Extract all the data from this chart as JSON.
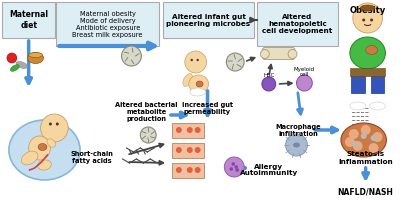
{
  "bg_color": "#ffffff",
  "box_color": "#ddeef5",
  "box_edge": "#aaaaaa",
  "arrow_blue": "#4a90d9",
  "arrow_dark": "#444444",
  "text_box1": "Maternal\ndiet",
  "text_box2": "Maternal obesity\nMode of delivery\nAntibiotic exposure\nBreast milk exposure",
  "text_box3": "Altered infant gut\npioneering microbes",
  "text_box4": "Altered\nhematopoietic\ncell development",
  "text_obesity": "Obesity",
  "text_altered_bact": "Altered bacterial\nmetabolite\nproduction",
  "text_increased_gut": "Increased gut\npermeability",
  "text_scfa": "Short-chain\nfatty acids",
  "text_macrophage": "Macrophage\ninfiltration",
  "text_allergy": "Allergy\nAutoimmunity",
  "text_steatosis": "Steatosis\nInflammation",
  "text_nafld": "NAFLD/NASH",
  "text_hsc": "HSC",
  "text_myeloid": "Myeloid\ncell",
  "skin_color": "#f5d5a0",
  "skin_edge": "#c8a060",
  "fetus_bg": "#c5dff0",
  "fetus_bg_edge": "#85b8d8",
  "liver_color": "#cc7a44",
  "liver_spot": "#e8aa80",
  "gut_color": "#f0c0a0",
  "gut_spot": "#e06040",
  "hsc_color": "#8855bb",
  "myeloid_color": "#bb88cc",
  "macro_color": "#aabbd0",
  "mast_color": "#bb88cc",
  "bone_color": "#e8dfc0",
  "green_shirt": "#44bb44",
  "blue_pants": "#3355bb",
  "microbe_color": "#d8d8c8",
  "microbe_edge": "#888878"
}
